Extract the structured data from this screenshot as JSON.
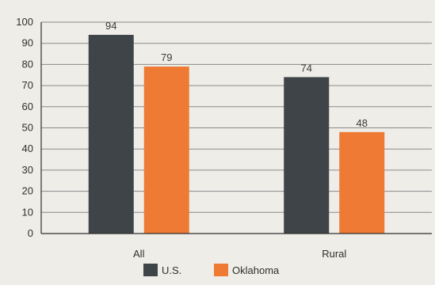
{
  "chart_data": {
    "type": "bar",
    "categories": [
      "All",
      "Rural"
    ],
    "series": [
      {
        "name": "U.S.",
        "values": [
          94,
          74
        ],
        "color": "#3f4448"
      },
      {
        "name": "Oklahoma",
        "values": [
          79,
          48
        ],
        "color": "#ee7a33"
      }
    ],
    "ylim": [
      0,
      100
    ],
    "yticks": [
      0,
      10,
      20,
      30,
      40,
      50,
      60,
      70,
      80,
      90,
      100
    ],
    "grid": true,
    "legend": "bottom-center",
    "title": "",
    "xlabel": "",
    "ylabel": ""
  },
  "colors": {
    "background": "#efede7",
    "grid": "#8a8a8a",
    "axis": "#2f2f2f"
  }
}
